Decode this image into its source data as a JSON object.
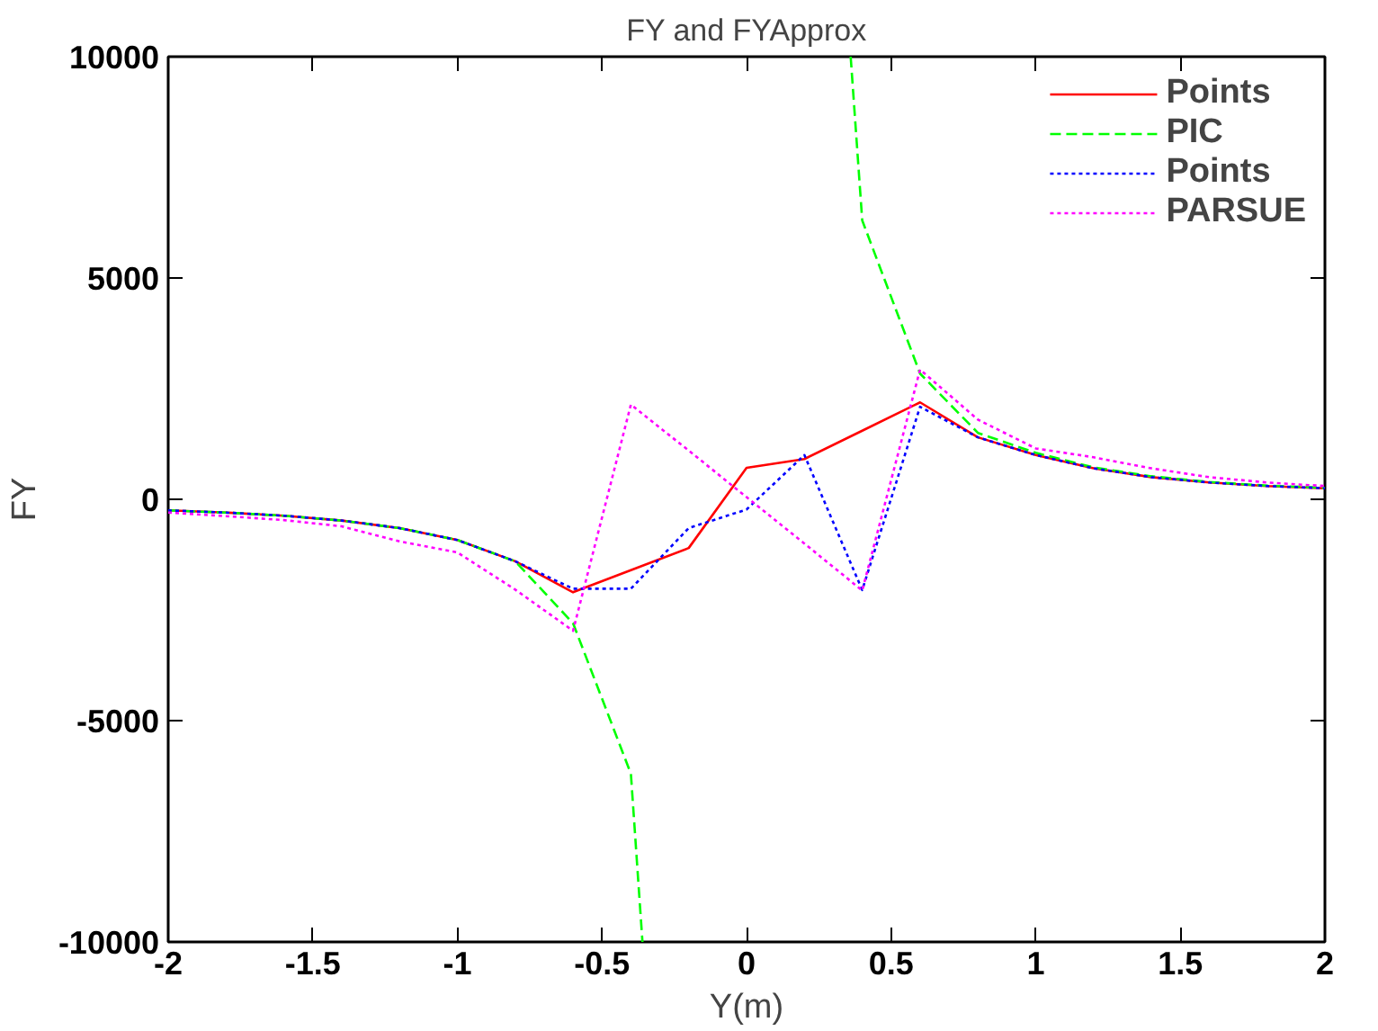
{
  "chart_data": {
    "type": "line",
    "title": "FY and FYApprox",
    "xlabel": "Y(m)",
    "ylabel": "FY",
    "x": [
      -2,
      -1.8,
      -1.6,
      -1.4,
      -1.2,
      -1,
      -0.8,
      -0.6,
      -0.4,
      -0.2,
      0,
      0.2,
      0.4,
      0.6,
      0.8,
      1,
      1.2,
      1.4,
      1.6,
      1.8,
      2
    ],
    "series": [
      {
        "name": "Points",
        "color": "#ff0000",
        "line_style": "solid",
        "values": [
          -250,
          -300,
          -370,
          -480,
          -650,
          -920,
          -1400,
          -2100,
          -1600,
          -1100,
          710,
          910,
          1550,
          2190,
          1400,
          1000,
          700,
          500,
          380,
          300,
          250
        ]
      },
      {
        "name": "PIC",
        "color": "#00ff00",
        "line_style": "dashed",
        "x": [
          -2,
          -1.8,
          -1.6,
          -1.4,
          -1.2,
          -1,
          -0.8,
          -0.6,
          -0.4,
          -0.36,
          0,
          0.36,
          0.4,
          0.6,
          0.8,
          1,
          1.2,
          1.4,
          1.6,
          1.8,
          2
        ],
        "values": [
          -250,
          -300,
          -370,
          -480,
          -650,
          -920,
          -1400,
          -2800,
          -6200,
          -10000,
          null,
          10000,
          6300,
          2840,
          1500,
          1050,
          720,
          520,
          390,
          310,
          260
        ]
      },
      {
        "name": "Points",
        "color": "#0000ff",
        "line_style": "dotted",
        "values": [
          -250,
          -300,
          -370,
          -480,
          -650,
          -920,
          -1400,
          -2020,
          -2020,
          -650,
          -230,
          1000,
          -2050,
          2090,
          1400,
          1000,
          700,
          500,
          380,
          300,
          250
        ]
      },
      {
        "name": "PARSUE",
        "color": "#ff00ff",
        "line_style": "dotted",
        "values": [
          -300,
          -380,
          -470,
          -610,
          -950,
          -1200,
          -2040,
          -2970,
          2140,
          1100,
          50,
          -1000,
          -2060,
          2930,
          1800,
          1150,
          950,
          700,
          500,
          380,
          300
        ]
      }
    ],
    "xlim": [
      -2,
      2
    ],
    "ylim": [
      -10000,
      10000
    ],
    "xticks": [
      -2,
      -1.5,
      -1,
      -0.5,
      0,
      0.5,
      1,
      1.5,
      2
    ],
    "yticks": [
      -10000,
      -5000,
      0,
      5000,
      10000
    ],
    "grid": false,
    "legend": "top right"
  }
}
